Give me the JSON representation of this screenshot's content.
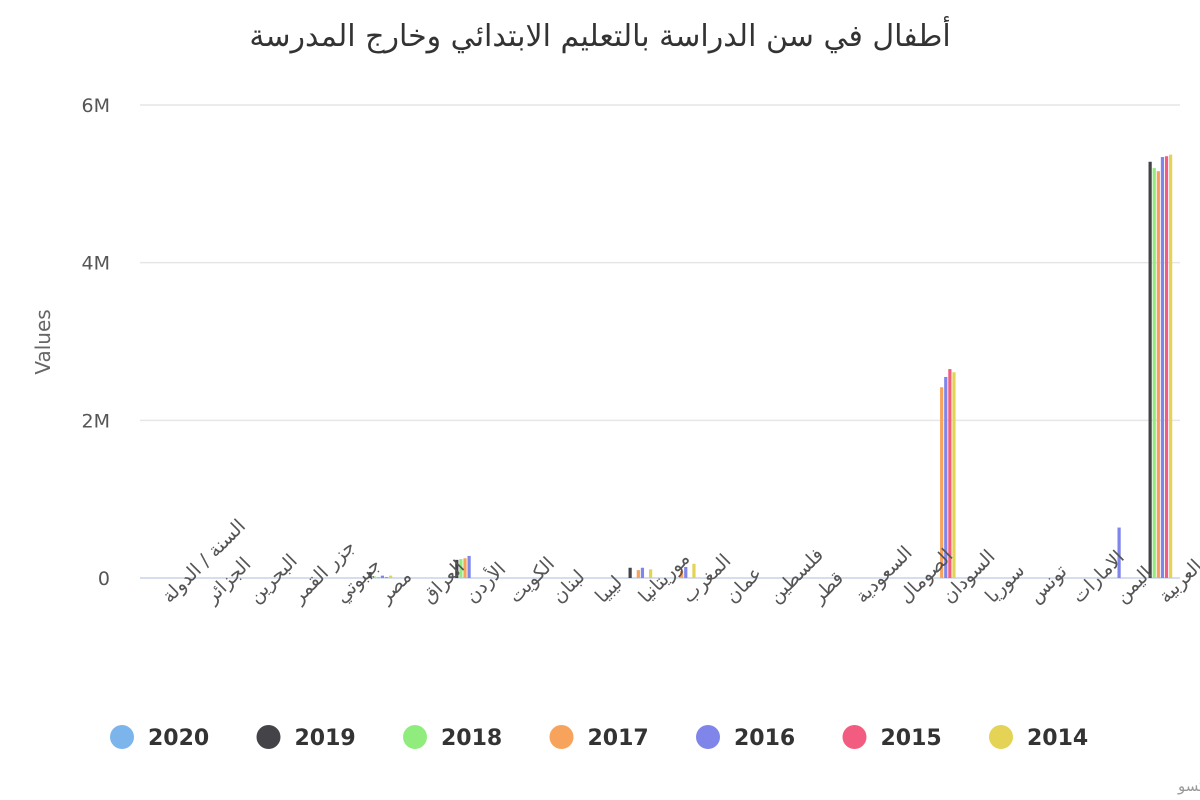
{
  "chart_data": {
    "type": "bar",
    "title": "أطفال في سن الدراسة بالتعليم الابتدائي وخارج المدرسة",
    "xlabel": "",
    "ylabel": "Values",
    "ylim": [
      0,
      6000000
    ],
    "yticks": [
      {
        "value": 0,
        "label": "0"
      },
      {
        "value": 2000000,
        "label": "2M"
      },
      {
        "value": 4000000,
        "label": "4M"
      },
      {
        "value": 6000000,
        "label": "6M"
      }
    ],
    "grid": true,
    "legend_position": "bottom",
    "categories": [
      "السنة / الدولة",
      "الجزائر",
      "البحرين",
      "جزر القمر",
      "جيبوتي",
      "مصر",
      "العراق",
      "الأردن",
      "الكويت",
      "لبنان",
      "ليبيا",
      "موريتانيا",
      "المغرب",
      "عمان",
      "فلسطين",
      "قطر",
      "السعودية",
      "الصومال",
      "السودان",
      "سوريا",
      "تونس",
      "الامارات",
      "اليمن",
      "الدول العربية"
    ],
    "series": [
      {
        "name": "2020",
        "color": "#7cb5ec",
        "values": [
          0,
          0,
          0,
          0,
          0,
          0,
          0,
          0,
          0,
          0,
          0,
          0,
          0,
          0,
          0,
          0,
          0,
          0,
          0,
          0,
          0,
          0,
          0,
          0
        ]
      },
      {
        "name": "2019",
        "color": "#434348",
        "values": [
          0,
          0,
          0,
          0,
          0,
          75000,
          0,
          230000,
          0,
          0,
          0,
          130000,
          0,
          0,
          0,
          0,
          0,
          0,
          0,
          0,
          0,
          0,
          0,
          5280000
        ]
      },
      {
        "name": "2018",
        "color": "#90ed7d",
        "values": [
          0,
          0,
          0,
          0,
          0,
          20000,
          0,
          240000,
          0,
          0,
          0,
          0,
          0,
          0,
          0,
          0,
          0,
          0,
          0,
          0,
          0,
          0,
          0,
          5200000
        ]
      },
      {
        "name": "2017",
        "color": "#f7a35c",
        "values": [
          0,
          0,
          0,
          0,
          0,
          10000,
          0,
          250000,
          0,
          0,
          0,
          100000,
          90000,
          0,
          0,
          0,
          0,
          0,
          2420000,
          0,
          0,
          0,
          0,
          5160000
        ]
      },
      {
        "name": "2016",
        "color": "#8085e9",
        "values": [
          0,
          0,
          0,
          0,
          0,
          30000,
          0,
          280000,
          0,
          0,
          0,
          130000,
          140000,
          0,
          0,
          0,
          0,
          0,
          2550000,
          0,
          0,
          0,
          640000,
          5340000
        ]
      },
      {
        "name": "2015",
        "color": "#f15c80",
        "values": [
          0,
          0,
          0,
          0,
          0,
          10000,
          0,
          0,
          0,
          0,
          0,
          0,
          0,
          0,
          0,
          0,
          0,
          0,
          2650000,
          0,
          0,
          0,
          0,
          5350000
        ]
      },
      {
        "name": "2014",
        "color": "#e4d354",
        "values": [
          0,
          0,
          0,
          0,
          0,
          30000,
          0,
          0,
          0,
          0,
          0,
          110000,
          180000,
          0,
          0,
          0,
          0,
          0,
          2610000,
          0,
          0,
          0,
          0,
          5370000
        ]
      }
    ]
  },
  "credit": "مرصد الألكسو"
}
